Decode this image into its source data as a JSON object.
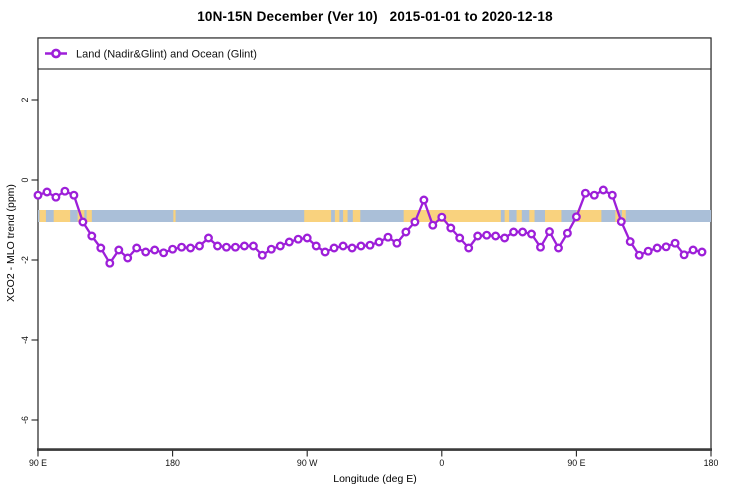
{
  "header": {
    "title": "10N-15N December (Ver 10)   2015-01-01 to 2020-12-18"
  },
  "chart_data": {
    "type": "line",
    "title": "10N-15N December (Ver 10)   2015-01-01 to 2020-12-18",
    "legend_label": "Land (Nadir&Glint) and Ocean (Glint)",
    "legend_position": "top-left strip spanning plot width",
    "xlabel": "Longitude (deg E)",
    "ylabel": "XCO2 - MLO trend (ppm)",
    "xlim": [
      90,
      540
    ],
    "ylim": [
      -6.75,
      2.85
    ],
    "grid": false,
    "x_ticks": [
      {
        "lon": 90,
        "label": "90 E"
      },
      {
        "lon": 180,
        "label": "180"
      },
      {
        "lon": 270,
        "label": "90 W"
      },
      {
        "lon": 360,
        "label": "0"
      },
      {
        "lon": 450,
        "label": "90 E"
      },
      {
        "lon": 540,
        "label": "180"
      }
    ],
    "y_ticks": [
      {
        "v": 2,
        "label": "2"
      },
      {
        "v": 0,
        "label": "0"
      },
      {
        "v": -2,
        "label": "-2"
      },
      {
        "v": -4,
        "label": "-4"
      },
      {
        "v": -6,
        "label": "-6"
      }
    ],
    "x_start": 90,
    "x_step": 6,
    "values": [
      -0.38,
      -0.3,
      -0.43,
      -0.28,
      -0.38,
      -1.05,
      -1.4,
      -1.7,
      -2.08,
      -1.75,
      -1.95,
      -1.7,
      -1.8,
      -1.75,
      -1.82,
      -1.73,
      -1.68,
      -1.7,
      -1.65,
      -1.45,
      -1.65,
      -1.68,
      -1.68,
      -1.65,
      -1.65,
      -1.88,
      -1.73,
      -1.65,
      -1.55,
      -1.48,
      -1.45,
      -1.65,
      -1.8,
      -1.7,
      -1.65,
      -1.7,
      -1.65,
      -1.63,
      -1.55,
      -1.43,
      -1.58,
      -1.3,
      -1.05,
      -0.5,
      -1.13,
      -0.93,
      -1.2,
      -1.45,
      -1.7,
      -1.4,
      -1.38,
      -1.4,
      -1.45,
      -1.3,
      -1.3,
      -1.35,
      -1.68,
      -1.29,
      -1.7,
      -1.33,
      -0.92,
      -0.33,
      -0.38,
      -0.25,
      -0.38,
      -1.04,
      -1.54,
      -1.88,
      -1.78,
      -1.7,
      -1.67,
      -1.58,
      -1.87,
      -1.75,
      -1.8
    ],
    "band": {
      "xlim": [
        90,
        540
      ],
      "top": -0.75,
      "bottom": -1.05,
      "land_segments_lon_E": [
        [
          91,
          95.3
        ],
        [
          100.5,
          111.5
        ],
        [
          116.5,
          121
        ],
        [
          122.5,
          126
        ],
        [
          180.5,
          182
        ],
        [
          268,
          286
        ],
        [
          288.5,
          291.5
        ],
        [
          294,
          297
        ],
        [
          300.5,
          305.5
        ],
        [
          334.5,
          399.5
        ],
        [
          402,
          405
        ],
        [
          410,
          413.5
        ],
        [
          418.5,
          422
        ],
        [
          429,
          440
        ],
        [
          450,
          466.7
        ],
        [
          476,
          479
        ],
        [
          480.5,
          483
        ]
      ]
    },
    "colors": {
      "line": "#9D1FD9",
      "marker_fill": "#ffffff",
      "ocean_band": "#AABFD8",
      "land_band": "#F9D27E",
      "axis": "#222222"
    }
  }
}
